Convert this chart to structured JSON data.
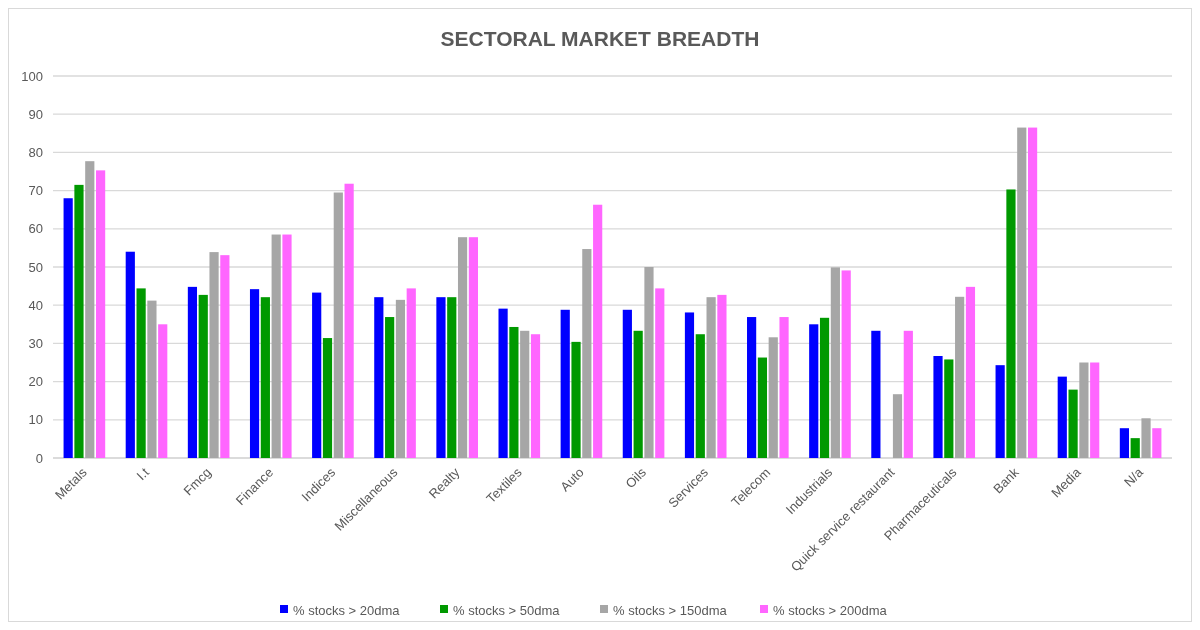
{
  "chart_data": {
    "type": "bar",
    "title": "SECTORAL MARKET BREADTH",
    "categories": [
      "Metals",
      "I.t",
      "Fmcg",
      "Finance",
      "Indices",
      "Miscellaneous",
      "Realty",
      "Textiles",
      "Auto",
      "Oils",
      "Services",
      "Telecom",
      "Industrials",
      "Quick service restaurant",
      "Pharmaceuticals",
      "Bank",
      "Media",
      "N/a"
    ],
    "series": [
      {
        "name": "% stocks > 20dma",
        "color": "#0000ff",
        "values": [
          68,
          54,
          44.8,
          44.2,
          43.3,
          42.1,
          42.1,
          39.1,
          38.8,
          38.8,
          38.1,
          36.9,
          35,
          33.3,
          26.7,
          24.3,
          21.3,
          7.8
        ]
      },
      {
        "name": "% stocks > 50dma",
        "color": "#009900",
        "values": [
          71.5,
          44.4,
          42.7,
          42.1,
          31.4,
          36.9,
          42.1,
          34.3,
          30.4,
          33.3,
          32.4,
          26.3,
          36.7,
          0,
          25.8,
          70.3,
          17.9,
          5.2
        ]
      },
      {
        "name": "% stocks > 150dma",
        "color": "#a6a6a6",
        "values": [
          77.7,
          41.2,
          53.9,
          58.5,
          69.5,
          41.4,
          57.8,
          33.3,
          54.7,
          50,
          42.1,
          31.6,
          49.9,
          16.7,
          42.2,
          86.5,
          25,
          10.4
        ]
      },
      {
        "name": "% stocks > 200dma",
        "color": "#ff66ff",
        "values": [
          75.3,
          35,
          53.1,
          58.5,
          71.8,
          44.4,
          57.8,
          32.4,
          66.3,
          44.4,
          42.7,
          36.9,
          49.1,
          33.3,
          44.8,
          86.5,
          25,
          7.8
        ]
      }
    ],
    "ylim": [
      0,
      100
    ],
    "yticks": [
      0,
      10,
      20,
      30,
      40,
      50,
      60,
      70,
      80,
      90,
      100
    ],
    "grid": "y",
    "legend": "bottom"
  }
}
